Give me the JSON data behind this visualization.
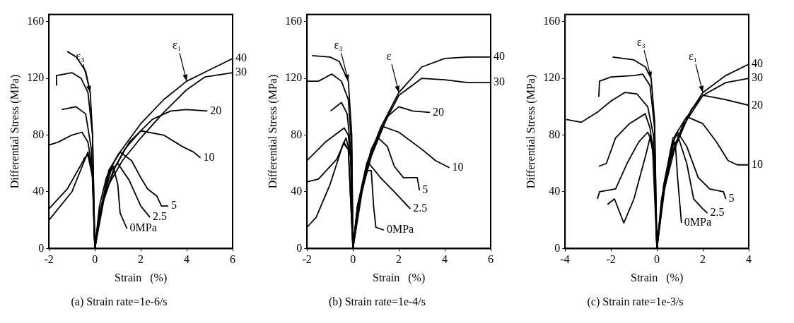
{
  "chart_data": [
    {
      "type": "line",
      "title": "(a) Strain rate=1e-6/s",
      "xlabel": "Strain   (%)",
      "ylabel": "Differential Stress (MPa)",
      "xlim": [
        -2,
        6
      ],
      "xticks": [
        -2,
        0,
        2,
        4,
        6
      ],
      "ylim": [
        0,
        165
      ],
      "yticks": [
        0,
        40,
        80,
        120,
        160
      ],
      "grid": false,
      "legend": false,
      "marker": "none",
      "annotations": [
        {
          "text": "ε₃",
          "x": -0.2,
          "y": 110
        },
        {
          "text": "ε₁",
          "x": 4,
          "y": 118
        }
      ],
      "series": [
        {
          "name": "40",
          "color": "#000000",
          "x": [
            -1.2,
            -0.8,
            -0.4,
            -0.2,
            -0.1,
            0,
            0.2,
            0.5,
            1,
            2,
            3,
            4,
            5,
            6
          ],
          "values": [
            139,
            135,
            125,
            110,
            80,
            0,
            30,
            50,
            66,
            88,
            105,
            118,
            126,
            134
          ]
        },
        {
          "name": "30",
          "color": "#000000",
          "x": [
            -1.67,
            -1.67,
            -1,
            -0.6,
            -0.3,
            -0.1,
            0,
            0.2,
            0.6,
            1.2,
            2,
            3,
            4,
            4.8,
            6
          ],
          "values": [
            115,
            122,
            124,
            120,
            110,
            80,
            0,
            25,
            45,
            62,
            78,
            96,
            112,
            121,
            124
          ]
        },
        {
          "name": "20",
          "color": "#000000",
          "x": [
            -1.44,
            -0.83,
            -0.4,
            -0.15,
            0,
            0.3,
            0.8,
            1.5,
            2.5,
            3.3,
            4,
            4.9
          ],
          "values": [
            98,
            100,
            95,
            70,
            0,
            30,
            55,
            75,
            91,
            97,
            98,
            97
          ]
        },
        {
          "name": "10",
          "color": "#000000",
          "x": [
            -2,
            -1.6,
            -1,
            -0.56,
            -0.3,
            -0.1,
            0,
            0.4,
            0.9,
            1.3,
            2,
            3,
            3.8,
            4.3,
            4.6
          ],
          "values": [
            73,
            75,
            80,
            82,
            75,
            55,
            0,
            35,
            58,
            70,
            83,
            80,
            72,
            68,
            64
          ]
        },
        {
          "name": "5",
          "color": "#000000",
          "x": [
            -2,
            -1.2,
            -0.5,
            -0.3,
            -0.1,
            0,
            0.3,
            0.6,
            1.1,
            1.6,
            2,
            2.3,
            2.7,
            2.9,
            3.2
          ],
          "values": [
            28,
            42,
            62,
            67,
            55,
            0,
            30,
            55,
            68,
            62,
            50,
            42,
            37,
            30,
            30
          ]
        },
        {
          "name": "2.5",
          "color": "#000000",
          "x": [
            -2,
            -1,
            -0.5,
            -0.3,
            -0.1,
            0,
            0.3,
            0.7,
            1,
            1.5,
            2,
            2.4
          ],
          "values": [
            20,
            40,
            60,
            68,
            55,
            0,
            30,
            55,
            60,
            48,
            30,
            22
          ]
        },
        {
          "name": "0MPa",
          "color": "#000000",
          "x": [
            -0.5,
            -0.3,
            -0.1,
            0,
            0.2,
            0.6,
            0.8,
            1,
            1.1,
            1.4
          ],
          "values": [
            63,
            66,
            50,
            0,
            25,
            52,
            58,
            45,
            25,
            14
          ]
        }
      ]
    },
    {
      "type": "line",
      "title": "(b) Strain rate=1e-4/s",
      "xlabel": "Strain   (%)",
      "ylabel": "Differential Stress (MPa)",
      "xlim": [
        -2,
        6
      ],
      "xticks": [
        -2,
        0,
        2,
        4,
        6
      ],
      "ylim": [
        0,
        165
      ],
      "yticks": [
        0,
        40,
        80,
        120,
        160
      ],
      "grid": false,
      "legend": false,
      "marker": "none",
      "annotations": [
        {
          "text": "ε₃",
          "x": -0.2,
          "y": 118
        },
        {
          "text": "ε",
          "x": 2,
          "y": 110
        }
      ],
      "series": [
        {
          "name": "40",
          "color": "#000000",
          "x": [
            -1.78,
            -1,
            -0.6,
            -0.2,
            -0.05,
            0,
            0.2,
            0.6,
            1.2,
            2,
            3,
            4,
            5,
            6
          ],
          "values": [
            136,
            135,
            132,
            118,
            80,
            0,
            30,
            60,
            85,
            110,
            128,
            134,
            135,
            135
          ]
        },
        {
          "name": "30",
          "color": "#000000",
          "x": [
            -2,
            -1.5,
            -0.92,
            -0.5,
            -0.2,
            -0.05,
            0,
            0.2,
            0.6,
            1.2,
            2,
            3,
            4,
            5,
            6
          ],
          "values": [
            118,
            118,
            123,
            118,
            105,
            70,
            0,
            30,
            58,
            83,
            108,
            120,
            119,
            117,
            117
          ]
        },
        {
          "name": "20",
          "color": "#000000",
          "x": [
            -0.97,
            -0.5,
            -0.25,
            -0.1,
            0,
            0.3,
            0.8,
            1.5,
            2,
            2.6,
            3.35
          ],
          "values": [
            97,
            103,
            95,
            70,
            0,
            35,
            65,
            93,
            100,
            97,
            96
          ]
        },
        {
          "name": "10",
          "color": "#000000",
          "x": [
            -2,
            -1.2,
            -0.38,
            -0.2,
            -0.05,
            0,
            0.4,
            0.8,
            1.3,
            2,
            3,
            3.6,
            4.2
          ],
          "values": [
            62,
            75,
            85,
            80,
            55,
            0,
            45,
            70,
            86,
            82,
            70,
            62,
            57
          ]
        },
        {
          "name": "5",
          "color": "#000000",
          "x": [
            -2,
            -1.5,
            -0.7,
            -0.3,
            -0.1,
            0,
            0.4,
            0.8,
            1.1,
            1.5,
            1.8,
            2.2,
            2.8,
            2.9
          ],
          "values": [
            47,
            49,
            63,
            78,
            65,
            0,
            40,
            70,
            78,
            72,
            58,
            50,
            50,
            41
          ]
        },
        {
          "name": "2.5",
          "color": "#000000",
          "x": [
            -2,
            -1.6,
            -1,
            -0.4,
            -0.2,
            0,
            0.3,
            0.7,
            1.2,
            1.8,
            2.5
          ],
          "values": [
            15,
            22,
            45,
            75,
            70,
            0,
            35,
            60,
            50,
            40,
            28
          ]
        },
        {
          "name": "0MPa",
          "color": "#000000",
          "x": [
            -0.4,
            -0.2,
            0,
            0.2,
            0.6,
            0.8,
            0.9,
            1,
            1.35
          ],
          "values": [
            74,
            70,
            0,
            30,
            55,
            55,
            30,
            15,
            13
          ]
        }
      ]
    },
    {
      "type": "line",
      "title": "(c) Strain rate=1e-3/s",
      "xlabel": "Strain   (%)",
      "ylabel": "Differential Stress (MPa)",
      "xlim": [
        -4,
        4
      ],
      "xticks": [
        -4,
        -2,
        0,
        2,
        4
      ],
      "ylim": [
        0,
        165
      ],
      "yticks": [
        0,
        40,
        80,
        120,
        160
      ],
      "grid": false,
      "legend": false,
      "marker": "none",
      "annotations": [
        {
          "text": "ε₃",
          "x": -0.25,
          "y": 120
        },
        {
          "text": "ε₁",
          "x": 2,
          "y": 110
        }
      ],
      "series": [
        {
          "name": "40",
          "color": "#000000",
          "x": [
            -1.93,
            -1,
            -0.5,
            -0.25,
            -0.1,
            0,
            0.2,
            0.6,
            1.2,
            2,
            3,
            4
          ],
          "values": [
            135,
            133,
            128,
            120,
            90,
            0,
            35,
            65,
            90,
            110,
            122,
            130
          ]
        },
        {
          "name": "30",
          "color": "#000000",
          "x": [
            -2.53,
            -2.5,
            -2,
            -1,
            -0.62,
            -0.3,
            -0.1,
            0,
            0.2,
            0.6,
            1.2,
            2,
            3,
            4
          ],
          "values": [
            107,
            118,
            121,
            122,
            123,
            115,
            85,
            0,
            33,
            63,
            88,
            108,
            117,
            120
          ]
        },
        {
          "name": "20",
          "color": "#000000",
          "x": [
            -3.95,
            -3.3,
            -2.6,
            -2,
            -1.4,
            -0.87,
            -0.4,
            -0.15,
            0,
            0.3,
            0.8,
            1.5,
            2,
            3,
            4
          ],
          "values": [
            91,
            89,
            96,
            104,
            110,
            109,
            100,
            80,
            0,
            40,
            72,
            98,
            108,
            105,
            101
          ]
        },
        {
          "name": "10",
          "color": "#000000",
          "x": [
            -2.53,
            -2.2,
            -1.8,
            -1.2,
            -0.51,
            -0.3,
            -0.1,
            0,
            0.4,
            0.8,
            1.3,
            2,
            2.6,
            3.1,
            3.5,
            4
          ],
          "values": [
            58,
            60,
            78,
            88,
            95,
            85,
            60,
            0,
            50,
            80,
            93,
            88,
            75,
            62,
            59,
            59
          ]
        },
        {
          "name": "5",
          "color": "#000000",
          "x": [
            -2.59,
            -2.5,
            -1.8,
            -1.3,
            -0.8,
            -0.4,
            -0.2,
            0,
            0.3,
            0.7,
            0.9,
            1.3,
            1.8,
            2.3,
            2.9,
            3
          ],
          "values": [
            35,
            40,
            42,
            60,
            75,
            82,
            75,
            0,
            45,
            75,
            82,
            72,
            50,
            42,
            40,
            35
          ]
        },
        {
          "name": "2.5",
          "color": "#000000",
          "x": [
            -2.15,
            -1.85,
            -1.44,
            -1,
            -0.5,
            -0.3,
            -0.1,
            0,
            0.3,
            0.7,
            0.9,
            1.3,
            1.6,
            2,
            2.2
          ],
          "values": [
            31,
            35,
            18,
            35,
            65,
            78,
            65,
            0,
            45,
            78,
            80,
            60,
            35,
            28,
            25
          ]
        },
        {
          "name": "0MPa",
          "color": "#000000",
          "x": [
            -0.3,
            -0.1,
            0,
            0.2,
            0.6,
            0.8,
            0.9,
            1.07
          ],
          "values": [
            80,
            60,
            0,
            30,
            70,
            75,
            50,
            18
          ]
        }
      ]
    }
  ]
}
